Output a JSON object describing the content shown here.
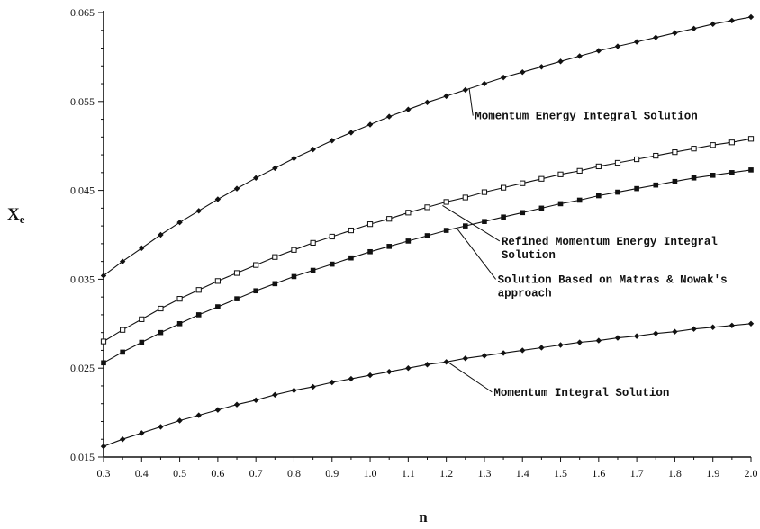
{
  "chart_data": {
    "type": "line",
    "xlabel": "n",
    "ylabel_main": "X",
    "ylabel_sub": "e",
    "xlim": [
      0.3,
      2.0
    ],
    "ylim": [
      0.015,
      0.065
    ],
    "x_ticks": [
      "0.3",
      "0.4",
      "0.5",
      "0.6",
      "0.7",
      "0.8",
      "0.9",
      "1.0",
      "1.1",
      "1.2",
      "1.3",
      "1.4",
      "1.5",
      "1.6",
      "1.7",
      "1.8",
      "1.9",
      "2.0"
    ],
    "y_ticks": [
      "0.015",
      "0.025",
      "0.035",
      "0.045",
      "0.055",
      "0.065"
    ],
    "grid": false,
    "x": [
      0.3,
      0.35,
      0.4,
      0.45,
      0.5,
      0.55,
      0.6,
      0.65,
      0.7,
      0.75,
      0.8,
      0.85,
      0.9,
      0.95,
      1.0,
      1.05,
      1.1,
      1.15,
      1.2,
      1.25,
      1.3,
      1.35,
      1.4,
      1.45,
      1.5,
      1.55,
      1.6,
      1.65,
      1.7,
      1.75,
      1.8,
      1.85,
      1.9,
      1.95,
      2.0
    ],
    "series": [
      {
        "marker": "filled-diamond",
        "values": [
          0.0354,
          0.037,
          0.0385,
          0.04,
          0.0414,
          0.0427,
          0.044,
          0.0452,
          0.0464,
          0.0475,
          0.0486,
          0.0496,
          0.0506,
          0.0515,
          0.0524,
          0.0533,
          0.0541,
          0.0549,
          0.0556,
          0.0563,
          0.057,
          0.0577,
          0.0583,
          0.0589,
          0.0595,
          0.0601,
          0.0607,
          0.0612,
          0.0617,
          0.0622,
          0.0627,
          0.0632,
          0.0637,
          0.0641,
          0.0645
        ]
      },
      {
        "marker": "open-square",
        "values": [
          0.028,
          0.0293,
          0.0305,
          0.0317,
          0.0328,
          0.0338,
          0.0348,
          0.0357,
          0.0366,
          0.0375,
          0.0383,
          0.0391,
          0.0398,
          0.0405,
          0.0412,
          0.0418,
          0.0425,
          0.0431,
          0.0437,
          0.0442,
          0.0448,
          0.0453,
          0.0458,
          0.0463,
          0.0468,
          0.0472,
          0.0477,
          0.0481,
          0.0485,
          0.0489,
          0.0493,
          0.0497,
          0.0501,
          0.0504,
          0.0508
        ]
      },
      {
        "marker": "filled-square",
        "values": [
          0.0256,
          0.0268,
          0.0279,
          0.029,
          0.03,
          0.031,
          0.0319,
          0.0328,
          0.0337,
          0.0345,
          0.0353,
          0.036,
          0.0367,
          0.0374,
          0.0381,
          0.0387,
          0.0393,
          0.0399,
          0.0405,
          0.041,
          0.0415,
          0.042,
          0.0425,
          0.043,
          0.0435,
          0.0439,
          0.0444,
          0.0448,
          0.0452,
          0.0456,
          0.046,
          0.0464,
          0.0467,
          0.047,
          0.0473
        ]
      },
      {
        "marker": "filled-diamond",
        "values": [
          0.0162,
          0.017,
          0.0177,
          0.0184,
          0.0191,
          0.0197,
          0.0203,
          0.0209,
          0.0214,
          0.022,
          0.0225,
          0.0229,
          0.0234,
          0.0238,
          0.0242,
          0.0246,
          0.025,
          0.0254,
          0.0257,
          0.0261,
          0.0264,
          0.0267,
          0.027,
          0.0273,
          0.0276,
          0.0279,
          0.0281,
          0.0284,
          0.0286,
          0.0289,
          0.0291,
          0.0294,
          0.0296,
          0.0298,
          0.03
        ]
      }
    ],
    "annotations": [
      {
        "lines": [
          "Momentum Energy Integral Solution"
        ],
        "point_x": 1.26,
        "point_y": 0.0565,
        "line_end_x": 1.27,
        "line_end_y": 0.0534
      },
      {
        "lines": [
          "Refined Momentum Energy Integral",
          "Solution"
        ],
        "point_x": 1.19,
        "point_y": 0.0433,
        "line_end_x": 1.34,
        "line_end_y": 0.0393
      },
      {
        "lines": [
          "Solution Based on Matras & Nowak's",
          "approach"
        ],
        "point_x": 1.23,
        "point_y": 0.0406,
        "line_end_x": 1.33,
        "line_end_y": 0.035
      },
      {
        "lines": [
          "Momentum Integral Solution"
        ],
        "point_x": 1.2,
        "point_y": 0.0258,
        "line_end_x": 1.32,
        "line_end_y": 0.0223
      }
    ]
  }
}
